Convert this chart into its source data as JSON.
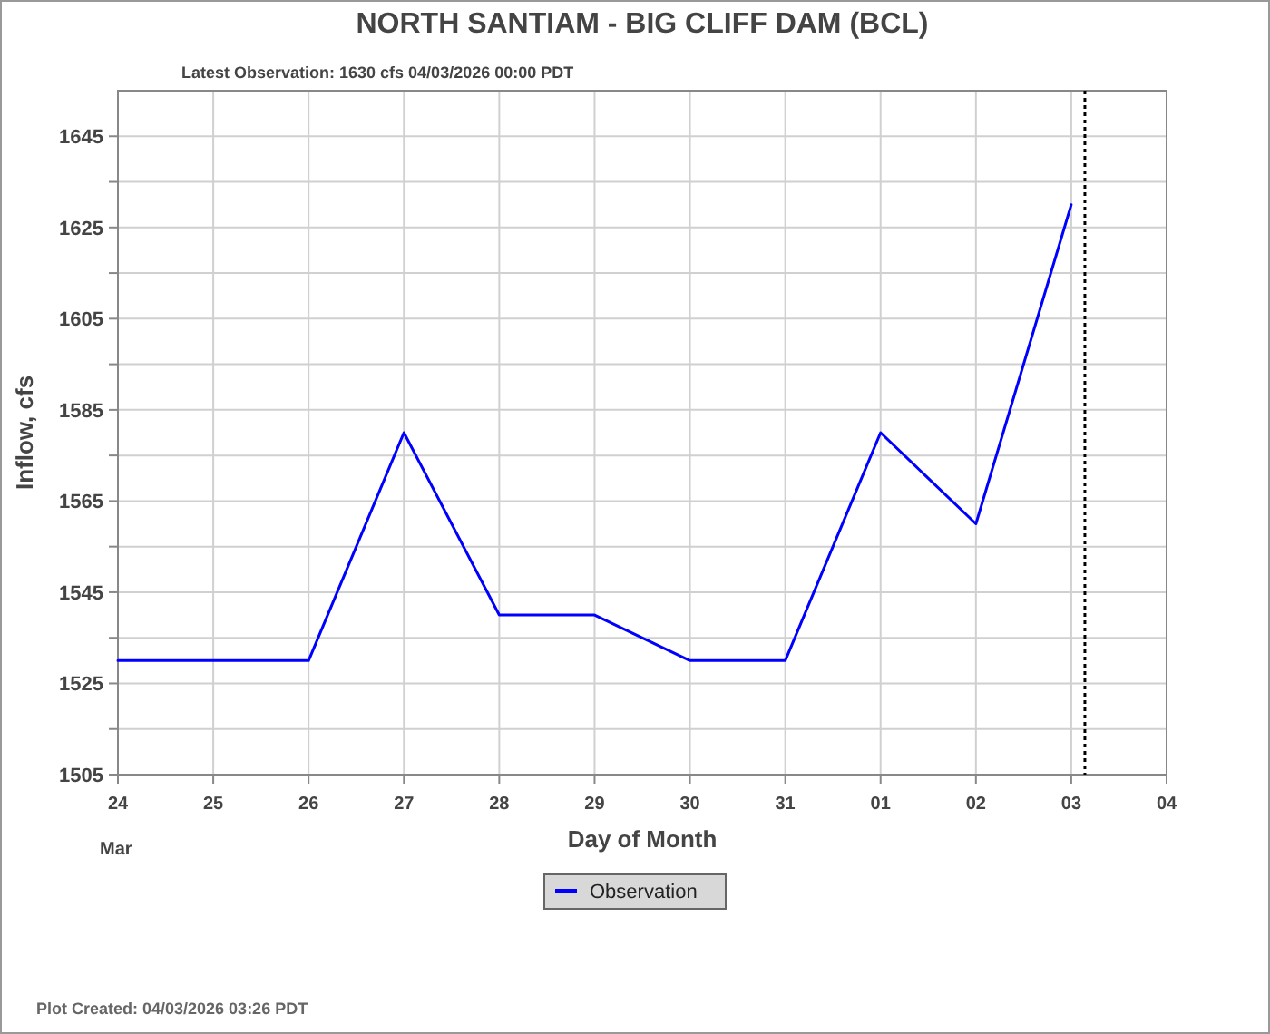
{
  "chart_data": {
    "type": "line",
    "title": "NORTH SANTIAM - BIG CLIFF DAM  (BCL)",
    "subtitle": "Latest Observation: 1630 cfs 04/03/2026 00:00 PDT",
    "xlabel": "Day of Month",
    "ylabel": "Inflow, cfs",
    "x": [
      "2026-03-24",
      "2026-03-25",
      "2026-03-26",
      "2026-03-27",
      "2026-03-28",
      "2026-03-29",
      "2026-03-30",
      "2026-03-31",
      "2026-04-01",
      "2026-04-02",
      "2026-04-03"
    ],
    "series": [
      {
        "name": "Observation",
        "color": "#0000ff",
        "values": [
          1530,
          1530,
          1530,
          1580,
          1540,
          1540,
          1530,
          1530,
          1580,
          1560,
          1630
        ]
      }
    ],
    "xlim": [
      "2026-03-24",
      "2026-04-04"
    ],
    "xticks": [
      {
        "value": "2026-03-24",
        "label": "24"
      },
      {
        "value": "2026-03-25",
        "label": "25"
      },
      {
        "value": "2026-03-26",
        "label": "26"
      },
      {
        "value": "2026-03-27",
        "label": "27"
      },
      {
        "value": "2026-03-28",
        "label": "28"
      },
      {
        "value": "2026-03-29",
        "label": "29"
      },
      {
        "value": "2026-03-30",
        "label": "30"
      },
      {
        "value": "2026-03-31",
        "label": "31"
      },
      {
        "value": "2026-04-01",
        "label": "01"
      },
      {
        "value": "2026-04-02",
        "label": "02"
      },
      {
        "value": "2026-04-03",
        "label": "03"
      },
      {
        "value": "2026-04-04",
        "label": "04"
      }
    ],
    "ylim": [
      1505,
      1655
    ],
    "yticks": [
      1505,
      {
        "value": 1515,
        "label": null
      },
      1525,
      {
        "value": 1535,
        "label": null
      },
      1545,
      {
        "value": 1555,
        "label": null
      },
      1565,
      {
        "value": 1575,
        "label": null
      },
      1585,
      {
        "value": 1595,
        "label": null
      },
      1605,
      {
        "value": 1615,
        "label": null
      },
      1625,
      {
        "value": 1635,
        "label": null
      },
      1645
    ],
    "grid": true,
    "legend": "bottom",
    "marker": "none",
    "line_style": "solid",
    "ref_lines": [
      {
        "axis": "x",
        "value": "2026-04-03T03:26",
        "color": "#000000",
        "line_style": "dotted"
      }
    ],
    "annotations": [
      "Mar",
      "Plot Created: 04/03/2026 03:26 PDT"
    ]
  }
}
